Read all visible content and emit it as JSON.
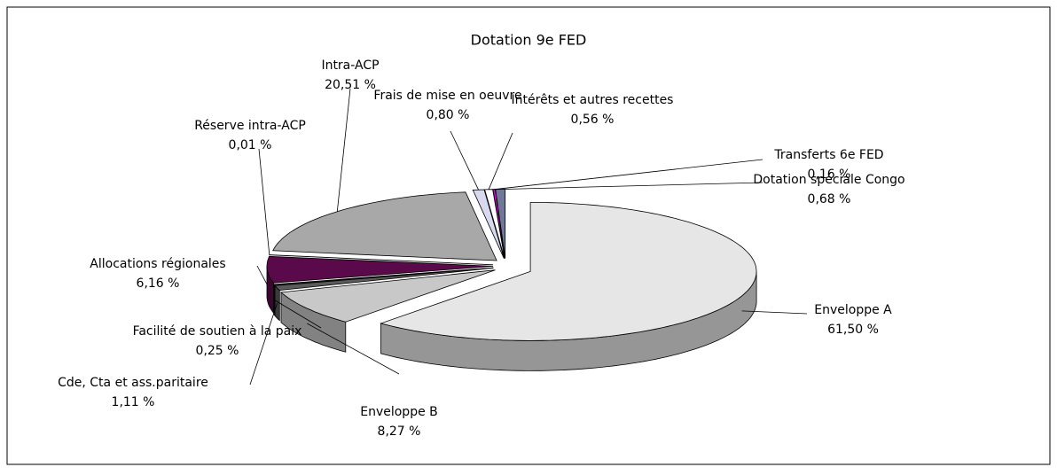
{
  "chart_data": {
    "type": "pie3d",
    "title": "Dotation 9e FED",
    "categories": [
      "Enveloppe A",
      "Enveloppe B",
      "Cde, Cta et ass.paritaire",
      "Facilité de soutien à la paix",
      "Allocations régionales",
      "Réserve intra-ACP",
      "Intra-ACP",
      "Frais de mise en oeuvre",
      "Intérêts et autres recettes",
      "Transferts 6e FED",
      "Dotation spéciale Congo"
    ],
    "values": [
      61.5,
      8.27,
      1.11,
      0.25,
      6.16,
      0.01,
      20.51,
      0.8,
      0.56,
      0.16,
      0.68
    ],
    "value_labels": [
      "61,50 %",
      "8,27 %",
      "1,11 %",
      "0,25 %",
      "6,16 %",
      "0,01 %",
      "20,51 %",
      "0,80 %",
      "0,56 %",
      "0,16 %",
      "0,68 %"
    ],
    "colors": [
      "#e6e6e6",
      "#c8c8c8",
      "#5a5a5a",
      "#3a3a3a",
      "#5a0a4a",
      "#222222",
      "#a8a8a8",
      "#d8d8ee",
      "#ffffff",
      "#e000e0",
      "#6f7896"
    ]
  }
}
